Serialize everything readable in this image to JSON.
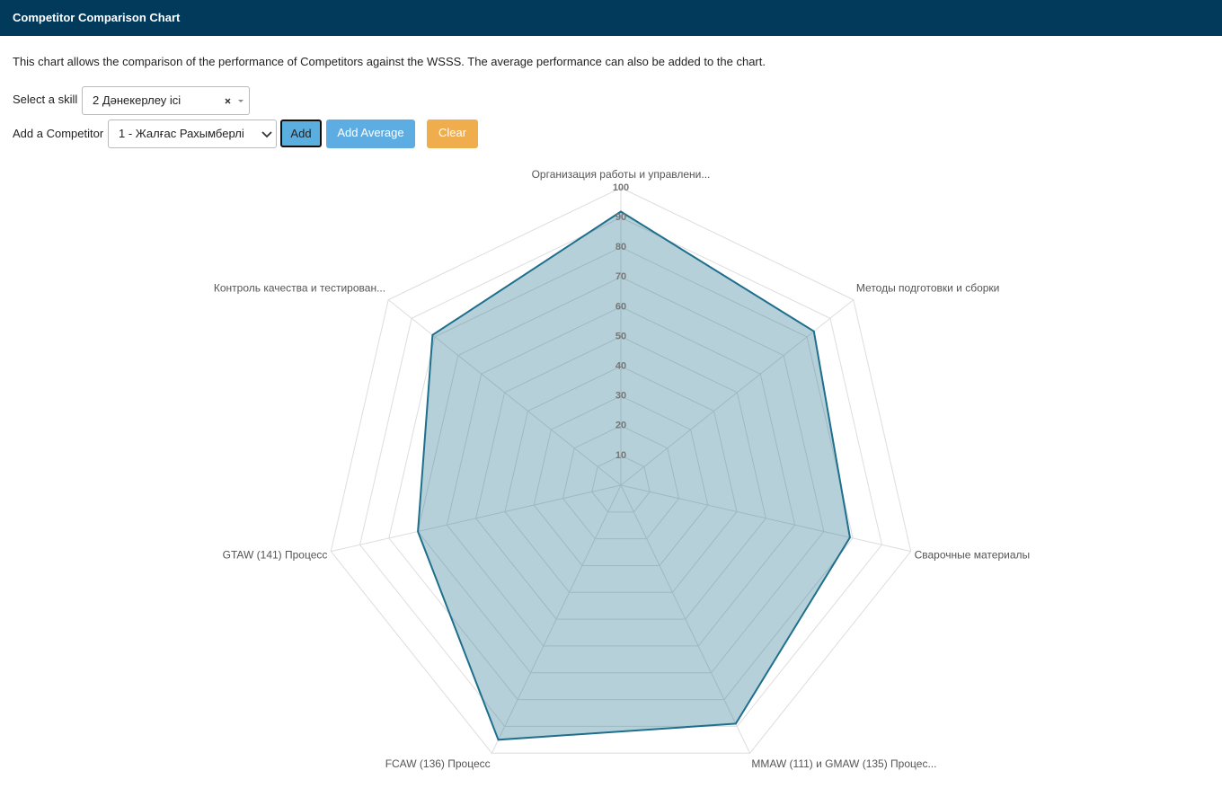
{
  "header": {
    "title": "Competitor Comparison Chart"
  },
  "description": "This chart allows the comparison of the performance of Competitors against the WSSS. The average performance can also be added to the chart.",
  "form": {
    "skill_label": "Select a skill",
    "skill_value": "2 Дәнекерлеу ісі",
    "competitor_label": "Add a Competitor",
    "competitor_value": "1 - Жалғас Рахымберлі",
    "buttons": [
      "Add",
      "Add Average",
      "Clear"
    ]
  },
  "chart_data": {
    "type": "radar",
    "categories": [
      "Организация работы и управлени...",
      "Методы подготовки и сборки",
      "Сварочные материалы",
      "MMAW (111) и GMAW (135) Процес...",
      "FCAW (136) Процесс",
      "GTAW (141) Процесс",
      "Контроль качества и тестирован..."
    ],
    "values": [
      92,
      83,
      79,
      89,
      95,
      70,
      81
    ],
    "color": "#1e6f8c",
    "rlim": [
      0,
      100
    ],
    "rticks": [
      10,
      20,
      30,
      40,
      50,
      60,
      70,
      80,
      90,
      100
    ],
    "grid": true
  }
}
